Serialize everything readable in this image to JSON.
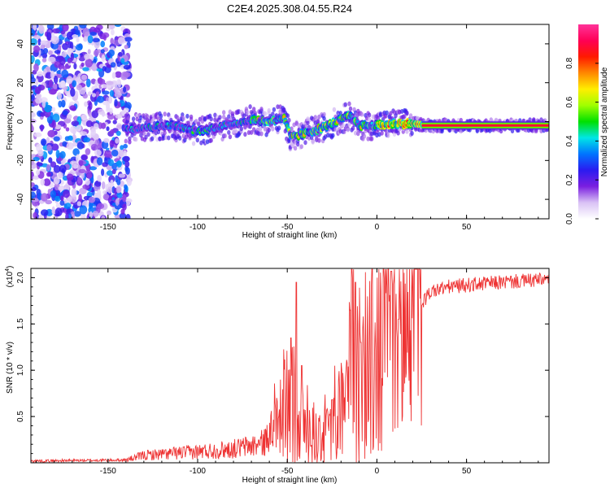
{
  "figure": {
    "title": "C2E4.2025.308.04.55.R24"
  },
  "chart_data": [
    {
      "type": "heatmap",
      "xlabel": "Height of straight line (km)",
      "ylabel": "Frequency (Hz)",
      "xlim": [
        -193,
        96
      ],
      "ylim": [
        -50,
        50
      ],
      "xticks": [
        -150,
        -100,
        -50,
        0,
        50
      ],
      "yticks": [
        -40,
        -20,
        0,
        20,
        40
      ],
      "colorbar": {
        "label": "Normalized spectral amplitude",
        "range": [
          0.0,
          1.0
        ],
        "ticks": [
          0.0,
          0.2,
          0.4,
          0.6,
          0.8
        ],
        "tick_labels": [
          "0.0",
          "0.2",
          "0.4",
          "0.6",
          "0.8"
        ],
        "colormap": [
          "#ffffff",
          "#d9c2f5",
          "#7a1fe0",
          "#2b1bf0",
          "#0074ff",
          "#00e6e6",
          "#00e000",
          "#a0ff00",
          "#ffee00",
          "#ff8800",
          "#ff1a00",
          "#ff0055",
          "#ff3399"
        ]
      },
      "ridge": {
        "description_points_x": [
          -142,
          -130,
          -115,
          -100,
          -85,
          -70,
          -60,
          -52,
          -48,
          -40,
          -30,
          -20,
          -15,
          -10,
          0,
          10,
          20,
          30,
          96
        ],
        "description_points_y": [
          -4,
          -3,
          -2,
          -5,
          -2,
          1,
          0,
          2,
          -8,
          -6,
          -3,
          1,
          3,
          -2,
          -2,
          -1,
          -1,
          -2,
          -2
        ]
      },
      "noise_region_x": [
        -193,
        -140
      ]
    },
    {
      "type": "line",
      "xlabel": "Height of straight line (km)",
      "ylabel": "SNR (10 * v/v)",
      "exponent_label": "(x10",
      "exponent_power": "4",
      "exponent_close": ")",
      "xlim": [
        -193,
        96
      ],
      "ylim": [
        0,
        2.1
      ],
      "xticks": [
        -150,
        -100,
        -50,
        0,
        50
      ],
      "yticks": [
        0.5,
        1.0,
        1.5,
        2.0
      ],
      "ytick_labels": [
        "0.5",
        "1.0",
        "1.5",
        "2.0"
      ],
      "color": "#ee3333",
      "envelope_x": [
        -193,
        -140,
        -130,
        -100,
        -80,
        -65,
        -55,
        -50,
        -45,
        -40,
        -30,
        -20,
        -15,
        -10,
        -5,
        0,
        5,
        10,
        15,
        20,
        30,
        40,
        50,
        70,
        96
      ],
      "envelope_y": [
        0.02,
        0.03,
        0.08,
        0.12,
        0.15,
        0.2,
        0.35,
        0.6,
        0.7,
        0.35,
        0.25,
        0.5,
        0.9,
        1.0,
        1.05,
        1.1,
        1.2,
        1.3,
        1.4,
        1.6,
        1.85,
        1.9,
        1.92,
        1.95,
        1.98
      ],
      "spikes": [
        {
          "x": -48,
          "y": 1.35
        },
        {
          "x": -45,
          "y": 1.95
        },
        {
          "x": -42,
          "y": 1.05
        },
        {
          "x": -25,
          "y": 0.68
        },
        {
          "x": -15,
          "y": 1.65
        },
        {
          "x": -12,
          "y": 1.95
        },
        {
          "x": -9,
          "y": 1.3
        },
        {
          "x": 8,
          "y": 2.07
        },
        {
          "x": 12,
          "y": 1.55
        }
      ]
    }
  ]
}
